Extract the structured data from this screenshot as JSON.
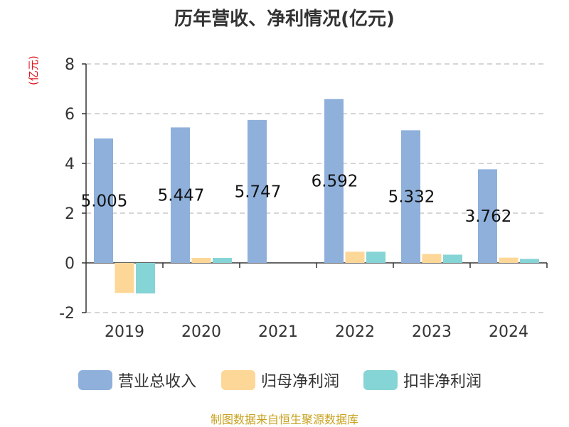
{
  "title": "历年营收、净利情况(亿元)",
  "unit_label": "(亿元)",
  "source": "制图数据来自恒生聚源数据库",
  "chart_data": {
    "type": "bar",
    "title": "历年营收、净利情况(亿元)",
    "xlabel": "",
    "ylabel": "(亿元)",
    "ylim": [
      -2,
      8
    ],
    "yticks": [
      -2,
      0,
      2,
      4,
      6,
      8
    ],
    "grid": true,
    "legend_position": "bottom",
    "categories": [
      "2019",
      "2020",
      "2021",
      "2022",
      "2023",
      "2024"
    ],
    "series": [
      {
        "name": "营业总收入",
        "color": "#8eb0db",
        "values": [
          5.005,
          5.447,
          5.747,
          6.592,
          5.332,
          3.762
        ],
        "labels": [
          "5.005",
          "5.447",
          "5.747",
          "6.592",
          "5.332",
          "3.762"
        ]
      },
      {
        "name": "归母净利润",
        "color": "#fdd798",
        "values": [
          -1.21,
          0.2,
          0.0,
          0.45,
          0.36,
          0.21
        ]
      },
      {
        "name": "扣非净利润",
        "color": "#85d4d6",
        "values": [
          -1.23,
          0.2,
          0.0,
          0.45,
          0.33,
          0.16
        ]
      }
    ]
  }
}
